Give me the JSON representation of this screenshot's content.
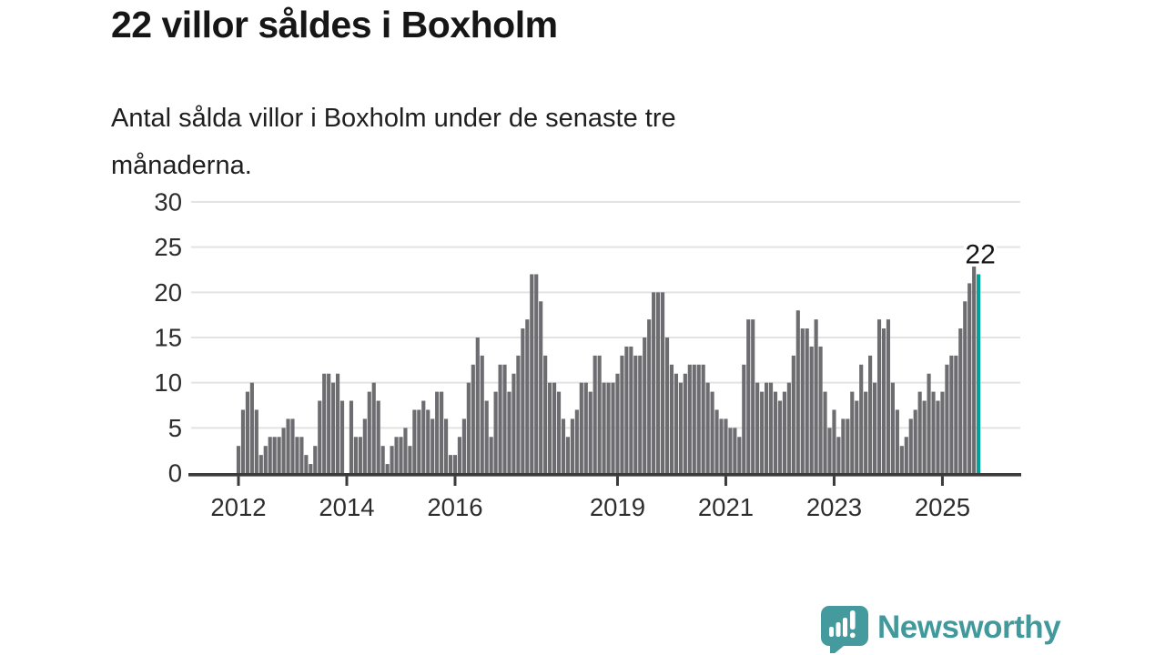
{
  "header": {
    "title": "22 villor såldes i Boxholm",
    "subtitle_line1": "Antal sålda villor i Boxholm under de senaste tre",
    "subtitle_line2": "månaderna."
  },
  "footer": {
    "brand": "Newsworthy",
    "logo_icon": "speech-bubble-mini-bar-chart-icon"
  },
  "colors": {
    "bar": "#6d6d71",
    "highlight": "#00a29a",
    "grid": "#e3e3e3",
    "axis": "#3a3a3a",
    "tick_label": "#2d2d2d",
    "annotation": "#151515",
    "logo": "#42999c"
  },
  "chart_data": {
    "type": "bar",
    "title": "22 villor såldes i Boxholm",
    "xlabel": "",
    "ylabel": "",
    "frequency": "monthly",
    "x_start_month": "2012-01",
    "x_end_month": "2025-09",
    "ylim": [
      0,
      30
    ],
    "grid": true,
    "y_ticks": [
      0,
      5,
      10,
      15,
      20,
      25,
      30
    ],
    "x_tick_years": [
      2012,
      2014,
      2016,
      2019,
      2021,
      2023,
      2025
    ],
    "highlight_last": true,
    "last_value_label": "22",
    "values": [
      3,
      7,
      9,
      10,
      7,
      2,
      3,
      4,
      4,
      4,
      5,
      6,
      6,
      4,
      4,
      2,
      1,
      3,
      8,
      11,
      11,
      10,
      11,
      8,
      0,
      8,
      4,
      4,
      6,
      9,
      10,
      8,
      3,
      1,
      3,
      4,
      4,
      5,
      3,
      7,
      7,
      8,
      7,
      6,
      9,
      9,
      6,
      2,
      2,
      4,
      6,
      10,
      12,
      15,
      13,
      8,
      4,
      9,
      12,
      12,
      9,
      11,
      13,
      16,
      17,
      22,
      22,
      19,
      13,
      10,
      10,
      9,
      6,
      4,
      6,
      7,
      10,
      10,
      9,
      13,
      13,
      10,
      10,
      10,
      11,
      13,
      14,
      14,
      13,
      13,
      15,
      17,
      20,
      20,
      20,
      15,
      12,
      11,
      10,
      11,
      12,
      12,
      12,
      12,
      10,
      9,
      7,
      6,
      6,
      5,
      5,
      4,
      12,
      17,
      17,
      10,
      9,
      10,
      10,
      9,
      8,
      9,
      10,
      13,
      18,
      16,
      16,
      14,
      17,
      14,
      9,
      5,
      7,
      4,
      6,
      6,
      9,
      8,
      12,
      9,
      13,
      10,
      17,
      16,
      17,
      10,
      7,
      3,
      4,
      6,
      7,
      9,
      8,
      11,
      9,
      8,
      9,
      12,
      13,
      13,
      16,
      19,
      21,
      23,
      22
    ]
  }
}
